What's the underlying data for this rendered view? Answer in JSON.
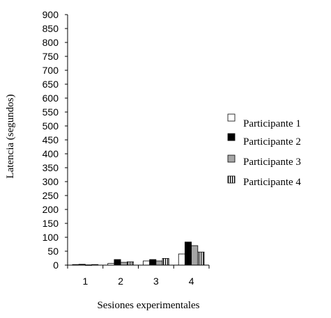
{
  "chart_data": {
    "type": "bar",
    "title": "",
    "xlabel": "Sesiones experimentales",
    "ylabel": "Latencia (segundos)",
    "ylim": [
      0,
      900
    ],
    "yticks": [
      0,
      50,
      100,
      150,
      200,
      250,
      300,
      350,
      400,
      450,
      500,
      550,
      600,
      650,
      700,
      750,
      800,
      850,
      900
    ],
    "categories": [
      "1",
      "2",
      "3",
      "4"
    ],
    "grid": false,
    "legend_position": "right",
    "series": [
      {
        "name": "Participante 1",
        "values": [
          2,
          6,
          15,
          40
        ],
        "fill": "#ffffff",
        "pattern": "none"
      },
      {
        "name": "Participante 2",
        "values": [
          3,
          20,
          20,
          83
        ],
        "fill": "#000000",
        "pattern": "none"
      },
      {
        "name": "Participante 3",
        "values": [
          1,
          10,
          15,
          70
        ],
        "fill": "#a6a6a6",
        "pattern": "none"
      },
      {
        "name": "Participante 4",
        "values": [
          2,
          12,
          24,
          47
        ],
        "fill": "#ffffff",
        "pattern": "vertical-stripes"
      }
    ]
  }
}
